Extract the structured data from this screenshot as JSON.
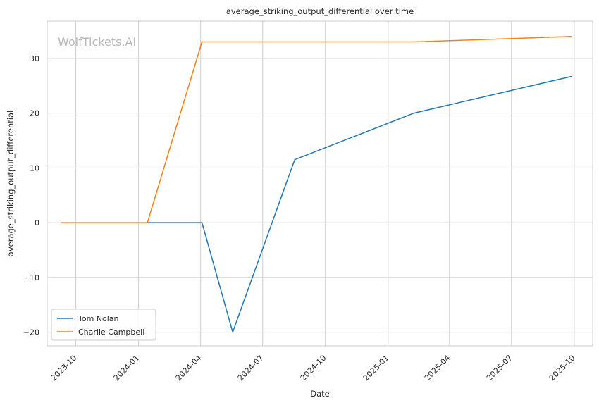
{
  "chart_data": {
    "type": "line",
    "title": "average_striking_output_differential over time",
    "xlabel": "Date",
    "ylabel": "average_striking_output_differential",
    "watermark": "WolfTickets.AI",
    "x_ticks": [
      "2023-10",
      "2024-01",
      "2024-04",
      "2024-07",
      "2024-10",
      "2025-01",
      "2025-04",
      "2025-07",
      "2025-10"
    ],
    "y_ticks": [
      -20,
      -10,
      0,
      10,
      20,
      30
    ],
    "xlim": [
      "2023-08-20",
      "2025-10-28"
    ],
    "ylim": [
      -22.5,
      36.8
    ],
    "grid": true,
    "legend_position": "lower-left",
    "series": [
      {
        "name": "Tom Nolan",
        "color": "#1f77b4",
        "points": [
          {
            "x": "2024-01-14",
            "y": 0
          },
          {
            "x": "2024-04-03",
            "y": 0
          },
          {
            "x": "2024-05-18",
            "y": -20
          },
          {
            "x": "2024-08-17",
            "y": 11.5
          },
          {
            "x": "2025-02-08",
            "y": 20
          },
          {
            "x": "2025-09-27",
            "y": 26.7
          }
        ]
      },
      {
        "name": "Charlie Campbell",
        "color": "#ff7f0e",
        "points": [
          {
            "x": "2023-09-09",
            "y": 0
          },
          {
            "x": "2024-01-14",
            "y": 0
          },
          {
            "x": "2024-04-03",
            "y": 33
          },
          {
            "x": "2025-02-08",
            "y": 33
          },
          {
            "x": "2025-09-27",
            "y": 34
          }
        ]
      }
    ]
  }
}
